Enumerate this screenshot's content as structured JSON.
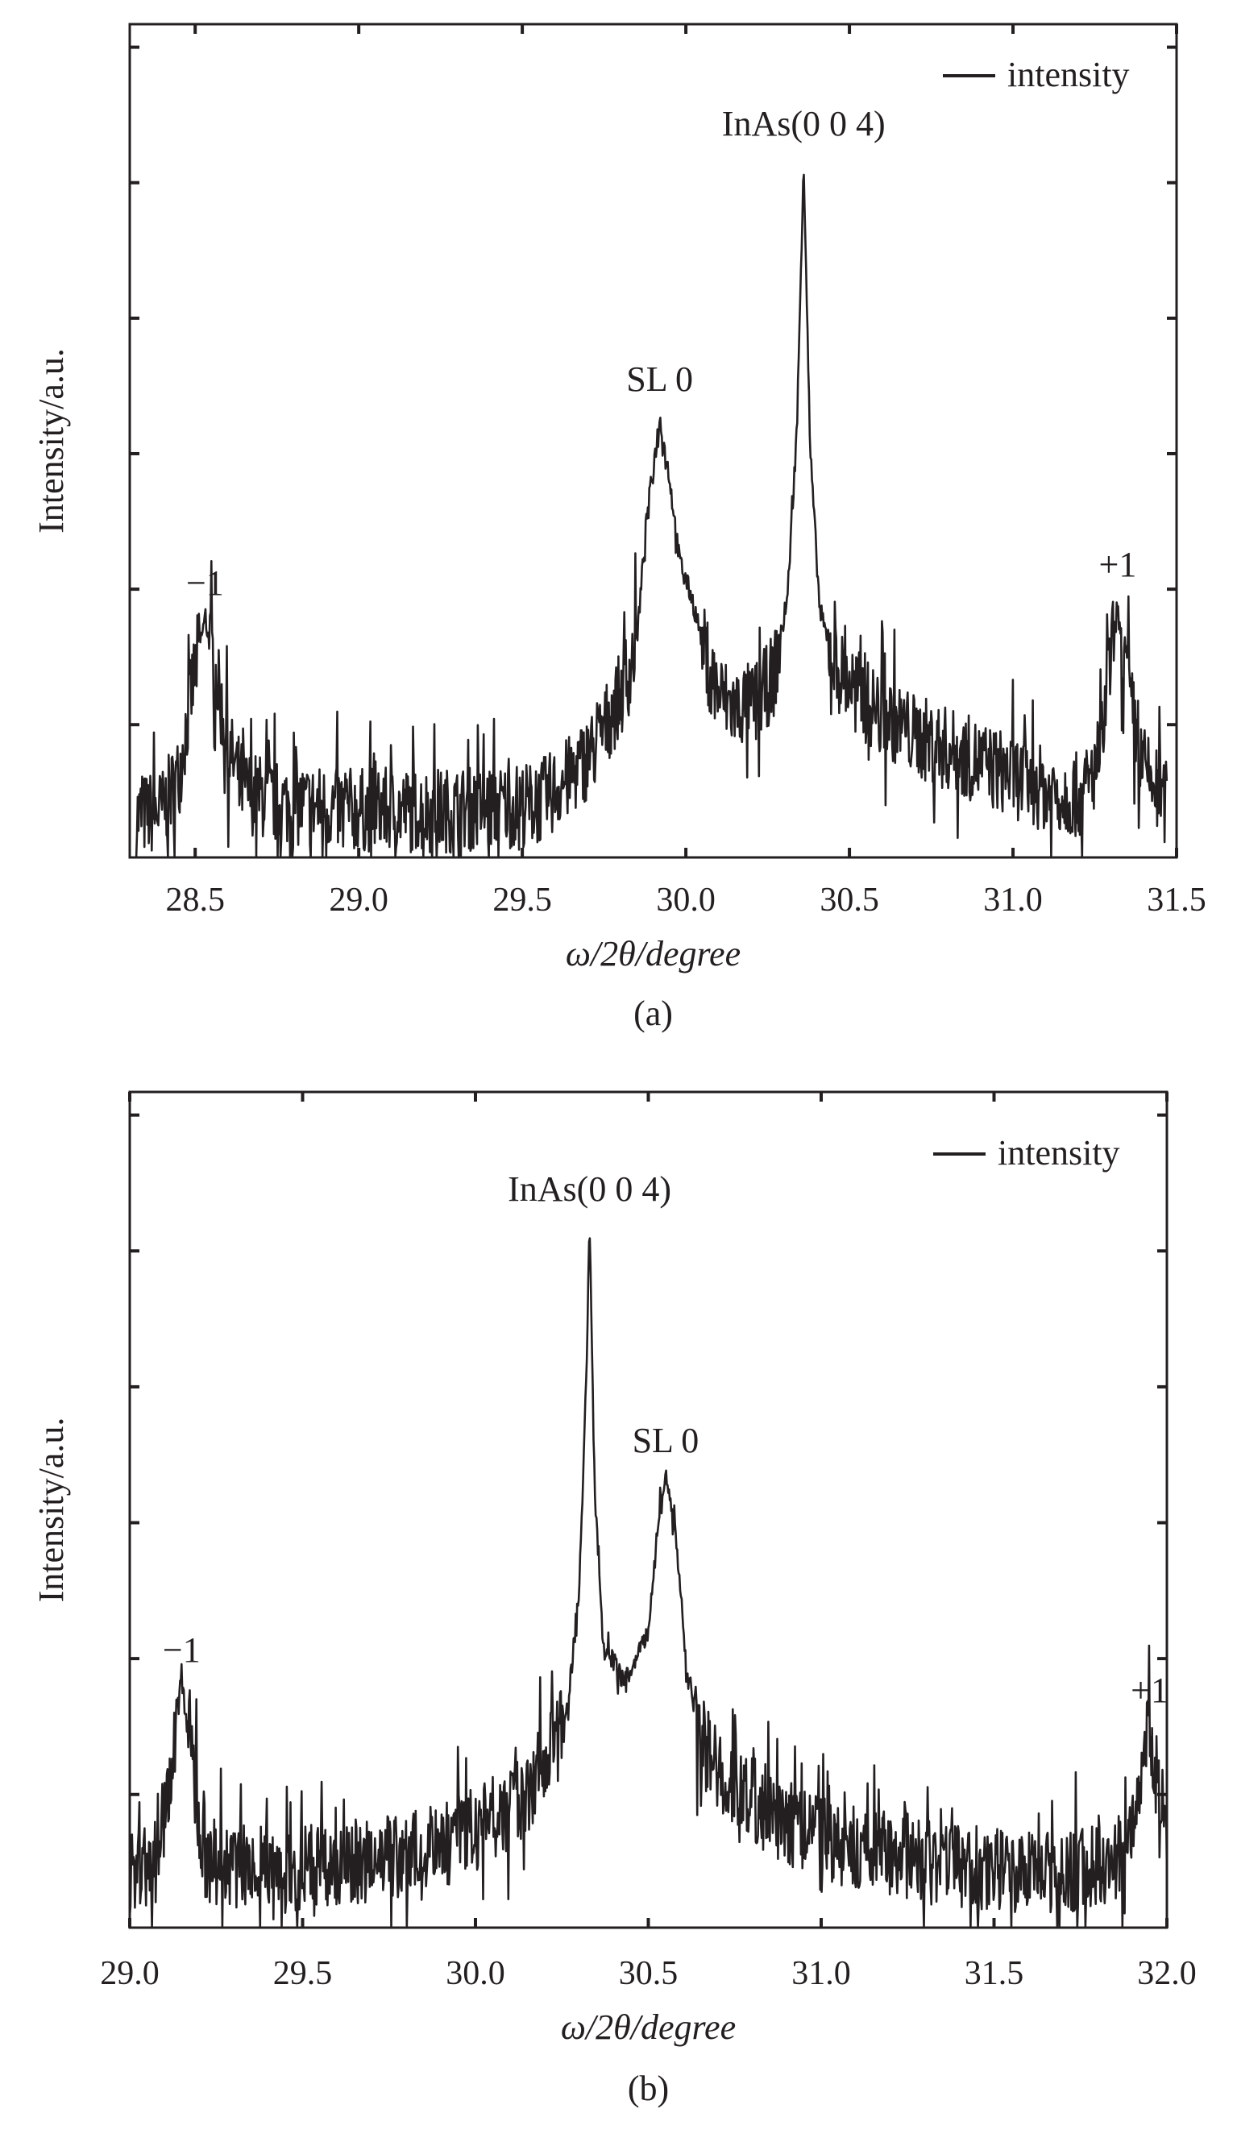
{
  "chart_data": [
    {
      "type": "line",
      "panel_label": "(a)",
      "xlabel": "ω/2θ/degree",
      "ylabel": "Intensity/a.u.",
      "xlim": [
        28.3,
        31.5
      ],
      "ylim": [
        0,
        6.15
      ],
      "xticks": [
        28.5,
        29.0,
        29.5,
        30.0,
        30.5,
        31.0,
        31.5
      ],
      "xtick_labels": [
        "28.5",
        "29.0",
        "29.5",
        "30.0",
        "30.5",
        "31.0",
        "31.5"
      ],
      "yticks": [
        0.98,
        1.98,
        2.98,
        3.98,
        4.98,
        5.98
      ],
      "legend": {
        "label": "intensity",
        "position": "top-right"
      },
      "annotations": [
        {
          "text": "InAs(0 0 4)",
          "x": 30.36
        },
        {
          "text": "SL 0",
          "x": 29.92
        },
        {
          "text": "−1",
          "x": 28.53
        },
        {
          "text": "+1",
          "x": 31.32
        }
      ],
      "noise_amplitude": 0.45,
      "series": [
        {
          "name": "intensity",
          "x": [
            28.32,
            28.4,
            28.45,
            28.5,
            28.53,
            28.56,
            28.6,
            28.65,
            28.75,
            29.0,
            29.3,
            29.55,
            29.65,
            29.72,
            29.78,
            29.82,
            29.85,
            29.88,
            29.92,
            29.95,
            29.98,
            30.02,
            30.06,
            30.1,
            30.15,
            30.22,
            30.27,
            30.31,
            30.34,
            30.36,
            30.38,
            30.41,
            30.46,
            30.55,
            30.7,
            30.9,
            31.1,
            31.22,
            31.27,
            31.3,
            31.32,
            31.35,
            31.39,
            31.45,
            31.47
          ],
          "y": [
            0.3,
            0.35,
            0.6,
            1.4,
            1.76,
            1.4,
            0.8,
            0.5,
            0.4,
            0.35,
            0.35,
            0.4,
            0.6,
            0.8,
            1.1,
            1.3,
            1.6,
            2.5,
            3.24,
            2.8,
            2.2,
            1.9,
            1.5,
            1.2,
            1.1,
            1.15,
            1.35,
            1.9,
            3.2,
            5.16,
            3.0,
            1.8,
            1.4,
            1.15,
            0.9,
            0.7,
            0.5,
            0.45,
            0.8,
            1.5,
            1.81,
            1.3,
            0.7,
            0.45,
            0.4
          ]
        }
      ]
    },
    {
      "type": "line",
      "panel_label": "(b)",
      "xlabel": "ω/2θ/degree",
      "ylabel": "Intensity/a.u.",
      "xlim": [
        29.0,
        32.0
      ],
      "ylim": [
        0,
        6.15
      ],
      "xticks": [
        29.0,
        29.5,
        30.0,
        30.5,
        31.0,
        31.5,
        32.0
      ],
      "xtick_labels": [
        "29.0",
        "29.5",
        "30.0",
        "30.5",
        "31.0",
        "31.5",
        "32.0"
      ],
      "yticks": [
        0.98,
        1.98,
        2.98,
        3.98,
        4.98,
        5.98
      ],
      "legend": {
        "label": "intensity",
        "position": "top-right"
      },
      "annotations": [
        {
          "text": "InAs(0 0 4)",
          "x": 30.33
        },
        {
          "text": "SL 0",
          "x": 30.55
        },
        {
          "text": "−1",
          "x": 29.15
        },
        {
          "text": "+1",
          "x": 31.95
        }
      ],
      "noise_amplitude": 0.45,
      "series": [
        {
          "name": "intensity",
          "x": [
            29.0,
            29.08,
            29.12,
            29.15,
            29.18,
            29.22,
            29.4,
            29.7,
            29.9,
            30.05,
            30.15,
            30.22,
            30.27,
            30.3,
            30.32,
            30.33,
            30.345,
            30.37,
            30.4,
            30.43,
            30.46,
            30.48,
            30.5,
            30.53,
            30.55,
            30.58,
            30.61,
            30.65,
            30.72,
            30.85,
            31.0,
            31.3,
            31.6,
            31.85,
            31.9,
            31.95,
            31.98,
            32.0
          ],
          "y": [
            0.4,
            0.5,
            1.2,
            1.83,
            1.2,
            0.5,
            0.4,
            0.5,
            0.6,
            0.8,
            1.0,
            1.3,
            1.7,
            2.5,
            4.0,
            5.16,
            3.2,
            2.05,
            1.95,
            1.8,
            1.95,
            2.05,
            2.2,
            3.0,
            3.35,
            2.9,
            1.9,
            1.4,
            1.1,
            0.85,
            0.65,
            0.5,
            0.4,
            0.45,
            0.8,
            1.48,
            1.0,
            0.6
          ]
        }
      ]
    }
  ]
}
